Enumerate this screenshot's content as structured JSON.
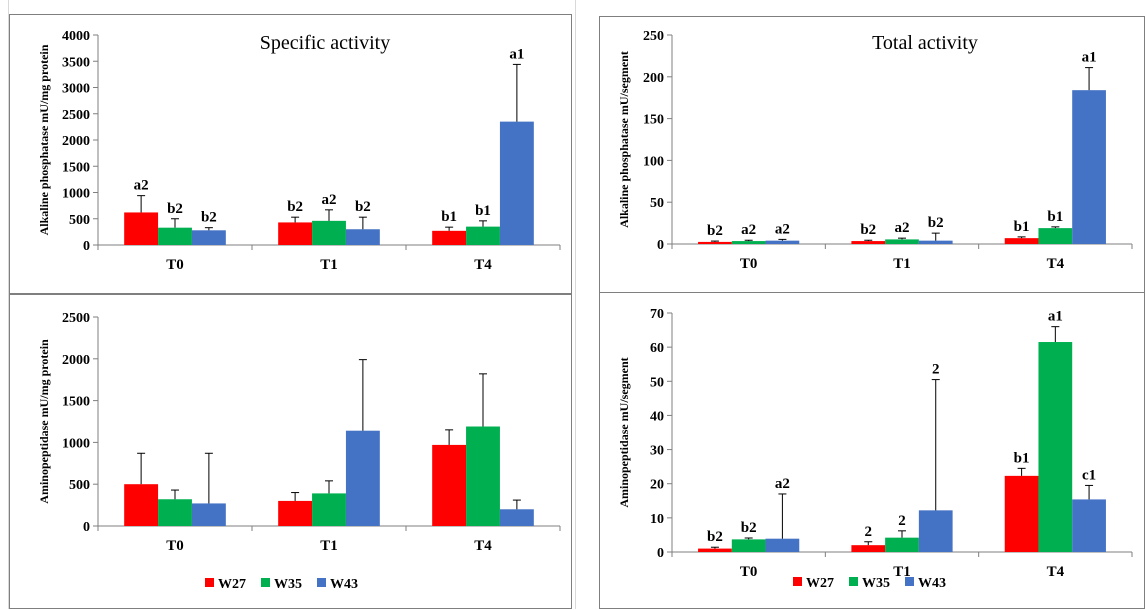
{
  "colors": {
    "W27": "#ff0000",
    "W35": "#00b050",
    "W43": "#4472c4"
  },
  "legend": [
    "W27",
    "W35",
    "W43"
  ],
  "chart_data": [
    {
      "id": "alp-specific",
      "type": "bar",
      "title": "Specific activity",
      "ylabel": "Alkaline phosphatase mU/mg protein",
      "categories": [
        "T0",
        "T1",
        "T4"
      ],
      "ylim": [
        0,
        4000
      ],
      "yticks": [
        0,
        500,
        1000,
        1500,
        2000,
        2500,
        3000,
        3500,
        4000
      ],
      "series": [
        {
          "name": "W27",
          "values": [
            620,
            430,
            270
          ],
          "errors": [
            320,
            100,
            70
          ],
          "labels": [
            "a2",
            "b2",
            "b1"
          ]
        },
        {
          "name": "W35",
          "values": [
            330,
            460,
            350
          ],
          "errors": [
            170,
            210,
            110
          ],
          "labels": [
            "b2",
            "a2",
            "b1"
          ]
        },
        {
          "name": "W43",
          "values": [
            280,
            300,
            2350
          ],
          "errors": [
            50,
            230,
            1090
          ],
          "labels": [
            "b2",
            "b2",
            "a1"
          ]
        }
      ]
    },
    {
      "id": "alp-total",
      "type": "bar",
      "title": "Total activity",
      "ylabel": "Alkaline phosphatase mU/segment",
      "categories": [
        "T0",
        "T1",
        "T4"
      ],
      "ylim": [
        0,
        250
      ],
      "yticks": [
        0,
        50,
        100,
        150,
        200,
        250
      ],
      "series": [
        {
          "name": "W27",
          "values": [
            2.5,
            3.5,
            7
          ],
          "errors": [
            1,
            1,
            1.5
          ],
          "labels": [
            "b2",
            "b2",
            "b1"
          ]
        },
        {
          "name": "W35",
          "values": [
            3.5,
            5.5,
            19
          ],
          "errors": [
            1,
            1.5,
            1.5
          ],
          "labels": [
            "a2",
            "a2",
            "b1"
          ]
        },
        {
          "name": "W43",
          "values": [
            4,
            4,
            184
          ],
          "errors": [
            1.5,
            9,
            27
          ],
          "labels": [
            "a2",
            "b2",
            "a1"
          ]
        }
      ]
    },
    {
      "id": "ap-specific",
      "type": "bar",
      "title": "",
      "ylabel": "Aminopeptidase mU/mg protein",
      "categories": [
        "T0",
        "T1",
        "T4"
      ],
      "ylim": [
        0,
        2500
      ],
      "yticks": [
        0,
        500,
        1000,
        1500,
        2000,
        2500
      ],
      "series": [
        {
          "name": "W27",
          "values": [
            500,
            300,
            970
          ],
          "errors": [
            370,
            100,
            180
          ],
          "labels": [
            "",
            "",
            ""
          ]
        },
        {
          "name": "W35",
          "values": [
            320,
            390,
            1190
          ],
          "errors": [
            110,
            150,
            630
          ],
          "labels": [
            "",
            "",
            ""
          ]
        },
        {
          "name": "W43",
          "values": [
            270,
            1140,
            200
          ],
          "errors": [
            600,
            850,
            110
          ],
          "labels": [
            "",
            "",
            ""
          ]
        }
      ]
    },
    {
      "id": "ap-total",
      "type": "bar",
      "title": "",
      "ylabel": "Aminopeptidase mU/segment",
      "categories": [
        "T0",
        "T1",
        "T4"
      ],
      "ylim": [
        0,
        70
      ],
      "yticks": [
        0,
        10,
        20,
        30,
        40,
        50,
        60,
        70
      ],
      "series": [
        {
          "name": "W27",
          "values": [
            1,
            2,
            22.3
          ],
          "errors": [
            0.4,
            1,
            2.2
          ],
          "labels": [
            "b2",
            "2",
            "b1"
          ]
        },
        {
          "name": "W35",
          "values": [
            3.7,
            4.2,
            61.5
          ],
          "errors": [
            0.4,
            2,
            4.5
          ],
          "labels": [
            "b2",
            "2",
            "a1"
          ]
        },
        {
          "name": "W43",
          "values": [
            3.9,
            12.2,
            15.4
          ],
          "errors": [
            13.1,
            38.3,
            4.1
          ],
          "labels": [
            "a2",
            "2",
            "c1"
          ]
        }
      ]
    }
  ]
}
